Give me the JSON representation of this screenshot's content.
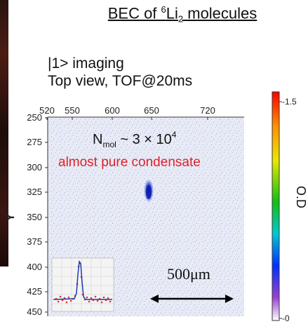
{
  "title": {
    "prefix": "BEC of ",
    "superscript": "6",
    "species": "Li",
    "subscript": "2",
    "suffix": " molecules"
  },
  "caption": {
    "line1": "|1> imaging",
    "line2": "Top view, TOF@20ms"
  },
  "image_panel": {
    "x_ticks": [
      "520",
      "550",
      "600",
      "650",
      "720"
    ],
    "y_ticks": [
      "250",
      "275",
      "300",
      "325",
      "350",
      "375",
      "400",
      "425",
      "450"
    ],
    "y_label": "Y",
    "annotation_count": "N",
    "annotation_count_sub": "mol",
    "annotation_count_value": " ~ 3 × 10",
    "annotation_count_exp": "4",
    "annotation_condensate": "almost pure condensate",
    "scale_bar_label": "500μm",
    "annotation_color": "#e0202a",
    "background_color": "#e6e9f4",
    "cloud_color": "#1030c0"
  },
  "colorbar": {
    "max_label": "-1.5",
    "min_label": "-0",
    "title": "O.D",
    "colors": [
      "#ff0000",
      "#ffa000",
      "#e0e000",
      "#00c000",
      "#00c8c8",
      "#0030ff",
      "#8020c0",
      "#ffffff"
    ]
  }
}
